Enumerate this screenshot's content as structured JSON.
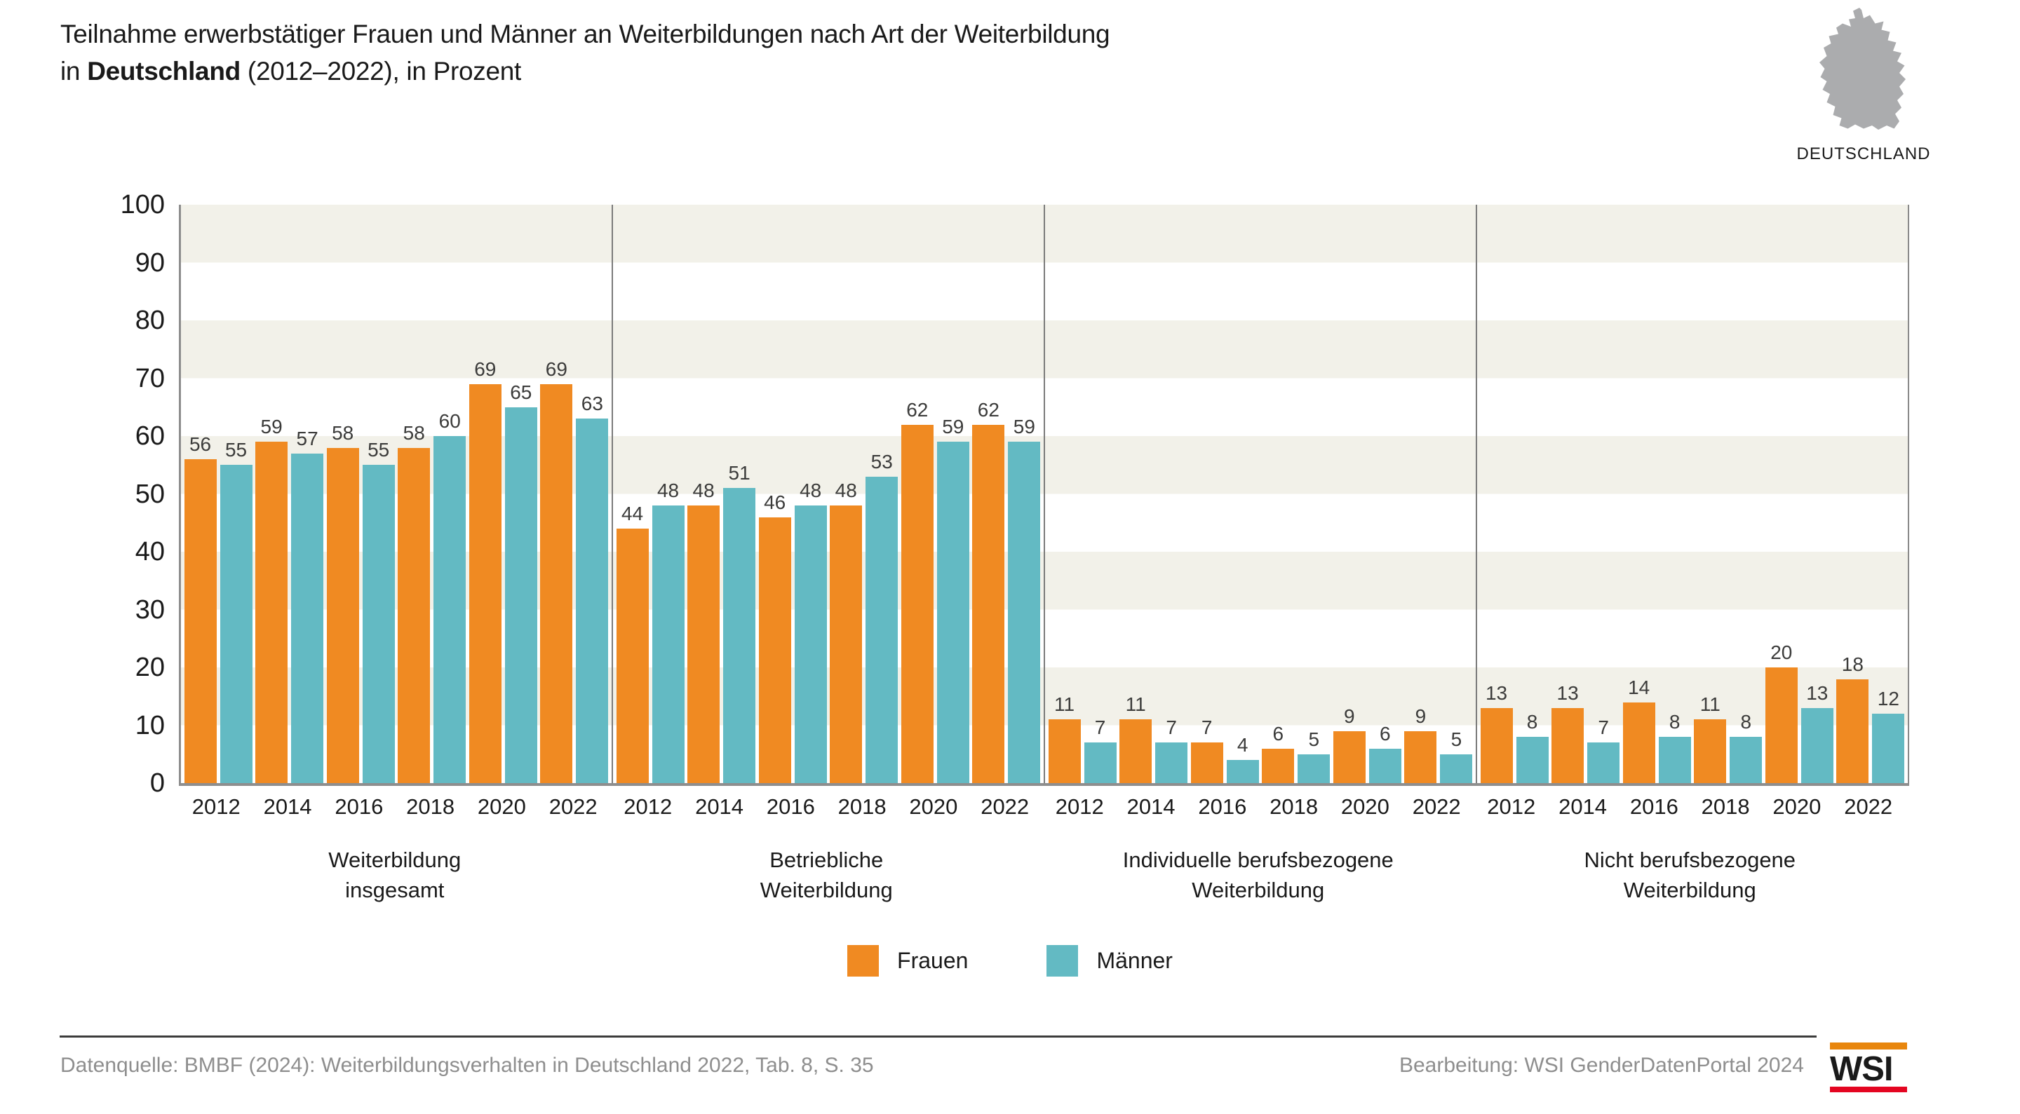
{
  "title": {
    "line1": "Teilnahme erwerbstätiger Frauen und Männer an Weiterbildungen nach Art der Weiterbildung",
    "line2_prefix": "in ",
    "line2_bold": "Deutschland",
    "line2_suffix": " (2012–2022), in Prozent"
  },
  "map_label": "DEUTSCHLAND",
  "legend": {
    "frauen": "Frauen",
    "maenner": "Männer"
  },
  "footer": {
    "source": "Datenquelle: BMBF (2024): Weiterbildungsverhalten in Deutschland 2022, Tab. 8, S. 35",
    "editing": "Bearbeitung: WSI GenderDatenPortal 2024",
    "logo_text": "WSI"
  },
  "colors": {
    "frauen": "#f08a22",
    "maenner": "#63bac3",
    "band": "#f2f1e9",
    "axis": "#8e8e8e",
    "separator": "#7b7b7b",
    "map_gray": "#abacae",
    "logo_orange": "#e8860d",
    "logo_red": "#e40521",
    "footer_text": "#8e8e8e"
  },
  "chart_data": {
    "type": "bar",
    "title": "Teilnahme erwerbstätiger Frauen und Männer an Weiterbildungen nach Art der Weiterbildung in Deutschland (2012–2022), in Prozent",
    "ylabel": "Prozent",
    "ylim": [
      0,
      100
    ],
    "yticks": [
      0,
      10,
      20,
      30,
      40,
      50,
      60,
      70,
      80,
      90,
      100
    ],
    "grid": "horizontal-bands",
    "legend_position": "bottom",
    "categories": [
      "2012",
      "2014",
      "2016",
      "2018",
      "2020",
      "2022"
    ],
    "panels": [
      {
        "label_lines": [
          "Weiterbildung",
          "insgesamt"
        ],
        "series": [
          {
            "name": "Frauen",
            "values": [
              56,
              59,
              58,
              58,
              69,
              69
            ]
          },
          {
            "name": "Männer",
            "values": [
              55,
              57,
              55,
              60,
              65,
              63
            ]
          }
        ]
      },
      {
        "label_lines": [
          "Betriebliche",
          "Weiterbildung"
        ],
        "series": [
          {
            "name": "Frauen",
            "values": [
              44,
              48,
              46,
              48,
              62,
              62
            ]
          },
          {
            "name": "Männer",
            "values": [
              48,
              51,
              48,
              53,
              59,
              59
            ]
          }
        ]
      },
      {
        "label_lines": [
          "Individuelle berufsbezogene",
          "Weiterbildung"
        ],
        "series": [
          {
            "name": "Frauen",
            "values": [
              11,
              11,
              7,
              6,
              9,
              9
            ]
          },
          {
            "name": "Männer",
            "values": [
              7,
              7,
              4,
              5,
              6,
              5
            ]
          }
        ]
      },
      {
        "label_lines": [
          "Nicht berufsbezogene",
          "Weiterbildung"
        ],
        "series": [
          {
            "name": "Frauen",
            "values": [
              13,
              13,
              14,
              11,
              20,
              18
            ]
          },
          {
            "name": "Männer",
            "values": [
              8,
              7,
              8,
              8,
              13,
              12
            ]
          }
        ]
      }
    ]
  }
}
